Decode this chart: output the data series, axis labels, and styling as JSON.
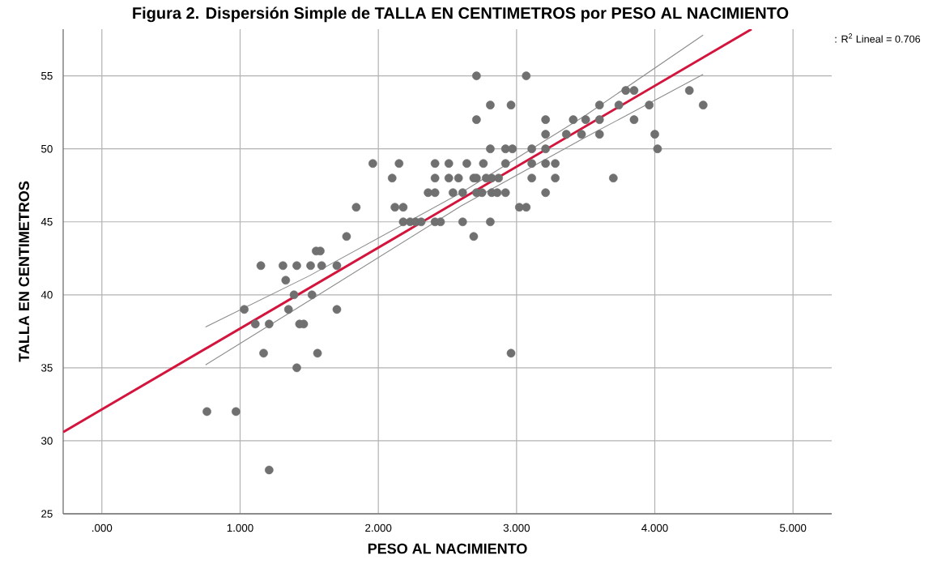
{
  "chart_data": {
    "type": "scatter",
    "title": "Figura 2. Dispersión Simple de TALLA EN CENTIMETROS por PESO AL NACIMIENTO",
    "xlabel": "PESO AL NACIMIENTO",
    "ylabel": "TALLA EN CENTIMETROS",
    "annotations": [
      ": R$^{2}$ Lineal = 0.706"
    ],
    "xlim": [
      -0.28,
      5.28
    ],
    "ylim": [
      25,
      58.2
    ],
    "xticks": [
      {
        "value": 0,
        "label": ".000"
      },
      {
        "value": 1,
        "label": "1.000"
      },
      {
        "value": 2,
        "label": "2.000"
      },
      {
        "value": 3,
        "label": "3.000"
      },
      {
        "value": 4,
        "label": "4.000"
      },
      {
        "value": 5,
        "label": "5.000"
      }
    ],
    "yticks": [
      25,
      30,
      35,
      40,
      45,
      50,
      55
    ],
    "grid": true,
    "marker": "circle",
    "series": [
      {
        "color": "#707070",
        "x": [
          0.76,
          0.97,
          1.21,
          1.41,
          1.17,
          1.56,
          2.96,
          1.11,
          1.21,
          1.43,
          1.46,
          1.03,
          1.35,
          1.7,
          1.39,
          1.52,
          1.33,
          1.15,
          1.31,
          1.41,
          1.51,
          1.59,
          1.7,
          1.55,
          1.58,
          1.77,
          2.69,
          2.18,
          2.23,
          2.27,
          2.31,
          2.41,
          2.45,
          2.61,
          2.81,
          1.84,
          2.12,
          2.18,
          3.02,
          3.07,
          2.36,
          2.41,
          2.54,
          2.61,
          2.71,
          2.75,
          2.82,
          2.86,
          2.92,
          3.21,
          2.1,
          2.41,
          2.51,
          2.58,
          2.69,
          2.71,
          2.78,
          2.82,
          2.87,
          3.11,
          3.28,
          3.7,
          1.96,
          2.15,
          2.41,
          2.51,
          2.64,
          2.76,
          2.92,
          3.11,
          3.21,
          3.28,
          2.81,
          2.92,
          2.97,
          3.11,
          3.21,
          4.02,
          3.21,
          3.36,
          3.47,
          3.6,
          4.0,
          2.71,
          3.21,
          3.41,
          3.5,
          3.6,
          3.85,
          2.81,
          2.96,
          3.6,
          3.74,
          3.96,
          4.35,
          3.79,
          3.85,
          4.25,
          2.71,
          3.07
        ],
        "values": [
          32,
          32,
          28,
          35,
          36,
          36,
          36,
          38,
          38,
          38,
          38,
          39,
          39,
          39,
          40,
          40,
          41,
          42,
          42,
          42,
          42,
          42,
          42,
          43,
          43,
          44,
          44,
          45,
          45,
          45,
          45,
          45,
          45,
          45,
          45,
          46,
          46,
          46,
          46,
          46,
          47,
          47,
          47,
          47,
          47,
          47,
          47,
          47,
          47,
          47,
          48,
          48,
          48,
          48,
          48,
          48,
          48,
          48,
          48,
          48,
          48,
          48,
          49,
          49,
          49,
          49,
          49,
          49,
          49,
          49,
          49,
          49,
          50,
          50,
          50,
          50,
          50,
          50,
          51,
          51,
          51,
          51,
          51,
          52,
          52,
          52,
          52,
          52,
          52,
          53,
          53,
          53,
          53,
          53,
          53,
          54,
          54,
          54,
          55,
          55
        ]
      },
      {
        "type": "line",
        "color": "#d3143c",
        "marker": "none",
        "x": [
          -0.28,
          4.7
        ],
        "values": [
          30.6,
          58.2
        ]
      },
      {
        "type": "line",
        "color": "#8c8c8c",
        "marker": "none",
        "x": [
          0.75,
          1.5,
          2.6,
          3.5,
          4.35
        ],
        "values": [
          37.8,
          41.3,
          47.0,
          52.3,
          57.8
        ]
      },
      {
        "type": "line",
        "color": "#8c8c8c",
        "marker": "none",
        "x": [
          0.75,
          1.5,
          2.6,
          3.5,
          4.35
        ],
        "values": [
          35.2,
          39.6,
          46.1,
          50.8,
          55.1
        ]
      }
    ]
  }
}
